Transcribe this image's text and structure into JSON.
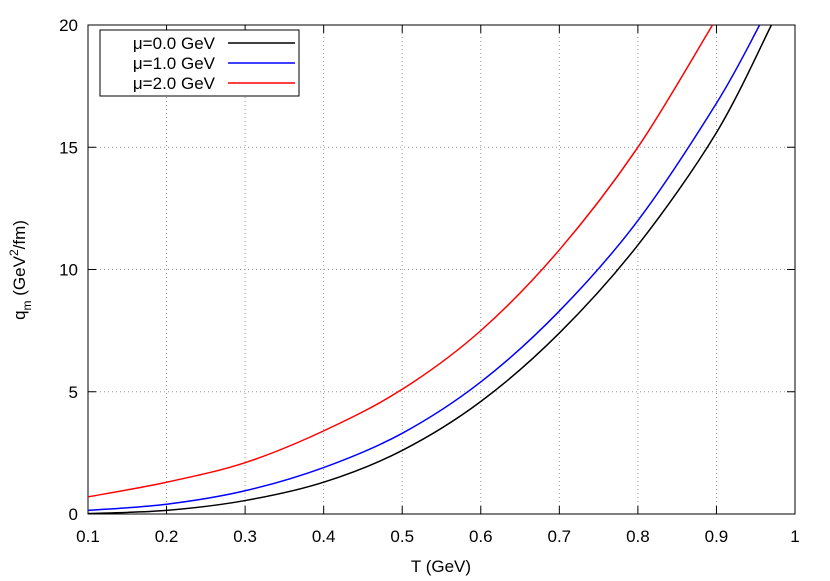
{
  "chart_data": {
    "type": "line",
    "xlabel": "T (GeV)",
    "ylabel": [
      "q",
      "m",
      " (GeV",
      "2",
      "/fm)"
    ],
    "xlim": [
      0.1,
      1
    ],
    "ylim": [
      0,
      20
    ],
    "xticks": [
      0.1,
      0.2,
      0.3,
      0.4,
      0.5,
      0.6,
      0.7,
      0.8,
      0.9,
      1
    ],
    "yticks": [
      0,
      5,
      10,
      15,
      20
    ],
    "grid": true,
    "legend": "upper left",
    "series": [
      {
        "name": "μ=0.0 GeV",
        "color": "#000000",
        "x": [
          0.1,
          0.2,
          0.3,
          0.4,
          0.5,
          0.6,
          0.7,
          0.8,
          0.9,
          0.97
        ],
        "values": [
          0.02,
          0.15,
          0.55,
          1.3,
          2.6,
          4.6,
          7.4,
          11.0,
          15.6,
          20
        ]
      },
      {
        "name": "μ=1.0 GeV",
        "color": "#0000ff",
        "x": [
          0.1,
          0.2,
          0.3,
          0.4,
          0.5,
          0.6,
          0.7,
          0.8,
          0.9,
          0.955
        ],
        "values": [
          0.15,
          0.4,
          0.95,
          1.9,
          3.3,
          5.4,
          8.3,
          12.0,
          16.8,
          20
        ]
      },
      {
        "name": "μ=2.0 GeV",
        "color": "#ff0000",
        "x": [
          0.1,
          0.2,
          0.3,
          0.4,
          0.5,
          0.6,
          0.7,
          0.8,
          0.895
        ],
        "values": [
          0.7,
          1.3,
          2.1,
          3.4,
          5.1,
          7.5,
          10.8,
          15.0,
          20
        ]
      }
    ]
  }
}
